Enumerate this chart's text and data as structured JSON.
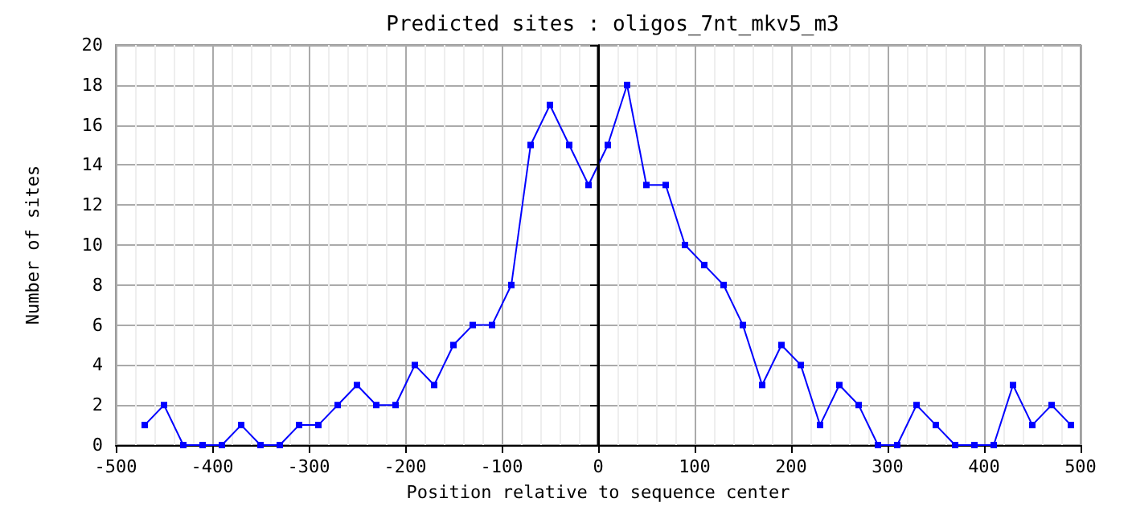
{
  "chart_data": {
    "type": "line",
    "title": "Predicted sites : oligos_7nt_mkv5_m3",
    "xlabel": "Position relative to sequence center",
    "ylabel": "Number of sites",
    "x": [
      -470,
      -450,
      -430,
      -410,
      -390,
      -370,
      -350,
      -330,
      -310,
      -290,
      -270,
      -250,
      -230,
      -210,
      -190,
      -170,
      -150,
      -130,
      -110,
      -90,
      -70,
      -50,
      -30,
      -10,
      10,
      30,
      50,
      70,
      90,
      110,
      130,
      150,
      170,
      190,
      210,
      230,
      250,
      270,
      290,
      310,
      330,
      350,
      370,
      390,
      410,
      430,
      450,
      470,
      490
    ],
    "series": [
      {
        "color": "#0000ff",
        "values": [
          1,
          2,
          0,
          0,
          0,
          1,
          0,
          0,
          1,
          1,
          2,
          3,
          2,
          2,
          4,
          3,
          5,
          6,
          6,
          8,
          15,
          17,
          15,
          13,
          15,
          18,
          13,
          13,
          10,
          9,
          8,
          6,
          3,
          5,
          4,
          1,
          3,
          2,
          0,
          0,
          2,
          1,
          0,
          0,
          0,
          3,
          1,
          2,
          1
        ]
      }
    ],
    "xlim": [
      -500,
      500
    ],
    "xticks": [
      -500,
      -400,
      -300,
      -200,
      -100,
      0,
      100,
      200,
      300,
      400,
      500
    ],
    "ylim": [
      0,
      20
    ],
    "yticks": [
      0,
      2,
      4,
      6,
      8,
      10,
      12,
      14,
      16,
      18,
      20
    ],
    "grid": true,
    "marker": "square",
    "line_style": "solid",
    "ref_lines": [
      {
        "axis": "x",
        "value": 0,
        "color": "#000000"
      }
    ]
  }
}
